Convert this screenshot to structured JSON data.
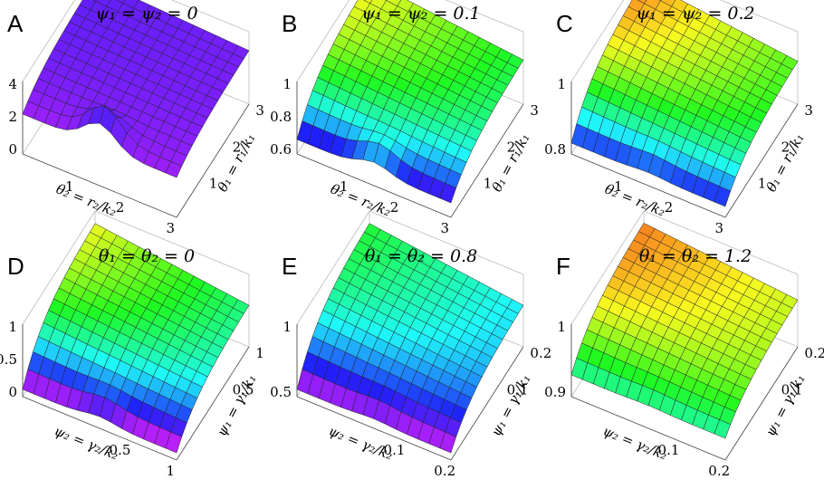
{
  "panels": [
    {
      "letter": "A",
      "title": "ψ₁ = ψ₂ = 0",
      "z_ticks": [
        "0",
        "2",
        "4"
      ],
      "left_ticks": [
        "1",
        "2",
        "3"
      ],
      "right_ticks": [
        "1",
        "2",
        "3"
      ],
      "left_label": "θ₂ = r₂/k₂",
      "right_label": "θ₁ = r₁/k₁"
    },
    {
      "letter": "B",
      "title": "ψ₁ = ψ₂ = 0.1",
      "z_ticks": [
        "0.6",
        "0.8",
        "1"
      ],
      "left_ticks": [
        "1",
        "2",
        "3"
      ],
      "right_ticks": [
        "1",
        "2",
        "3"
      ],
      "left_label": "θ₂ = r₂/k₂",
      "right_label": "θ₁ = r₁/k₁"
    },
    {
      "letter": "C",
      "title": "ψ₁ = ψ₂ = 0.2",
      "z_ticks": [
        "0.8",
        "1"
      ],
      "left_ticks": [
        "1",
        "2",
        "3"
      ],
      "right_ticks": [
        "1",
        "2",
        "3"
      ],
      "left_label": "θ₂ = r₂/k₂",
      "right_label": "θ₁ = r₁/k₁"
    },
    {
      "letter": "D",
      "title": "θ₁ = θ₂ = 0",
      "z_ticks": [
        "0",
        "0.5",
        "1"
      ],
      "left_ticks": [
        "0.5",
        "1"
      ],
      "right_ticks": [
        "0.5",
        "1"
      ],
      "left_label": "ψ₂ = γ₂/k₂",
      "right_label": "ψ₁ = γ₁/k₁"
    },
    {
      "letter": "E",
      "title": "θ₁ = θ₂ = 0.8",
      "z_ticks": [
        "0.5",
        "1"
      ],
      "left_ticks": [
        "0.1",
        "0.2"
      ],
      "right_ticks": [
        "0.1",
        "0.2"
      ],
      "left_label": "ψ₂ = γ₂/k₂",
      "right_label": "ψ₁ = γ₁/k₁"
    },
    {
      "letter": "F",
      "title": "θ₁ = θ₂ = 1.2",
      "z_ticks": [
        "0.9",
        "1"
      ],
      "left_ticks": [
        "0.1",
        "0.2"
      ],
      "right_ticks": [
        "0.1",
        "0.2"
      ],
      "left_label": "ψ₂ = γ₂/k₂",
      "right_label": "ψ₁ = γ₁/k₁"
    }
  ]
}
